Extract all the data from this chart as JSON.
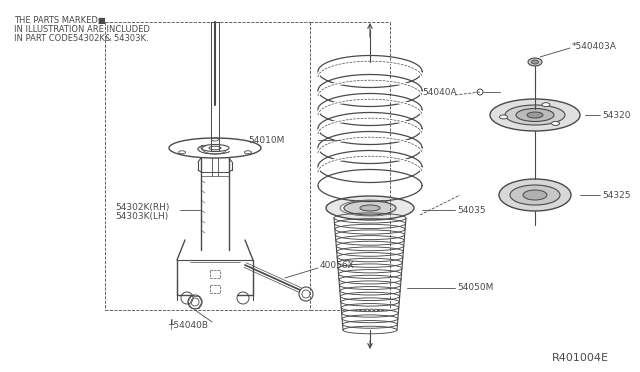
{
  "bg_color": "#ffffff",
  "line_color": "#4a4a4a",
  "note_lines": [
    "THE PARTS MARKED■",
    "IN ILLUSTRATION ARE INCLUDED",
    "IN PART CODE54302K& 54303K."
  ],
  "ref_code": "R401004E",
  "labels": {
    "54302K_RH": "54302K(RH)",
    "54303K_LH": "54303K(LH)",
    "40056X": "40056X",
    "54010M": "54010M",
    "54035": "54035",
    "54050M": "54050M",
    "54040A": "54040A",
    "540403A": "*540403A",
    "54320": "54320",
    "54325": "54325",
    "54040B": "╀54040B"
  },
  "font_size_label": 6.5,
  "font_size_note": 6.0,
  "font_size_ref": 8.0
}
